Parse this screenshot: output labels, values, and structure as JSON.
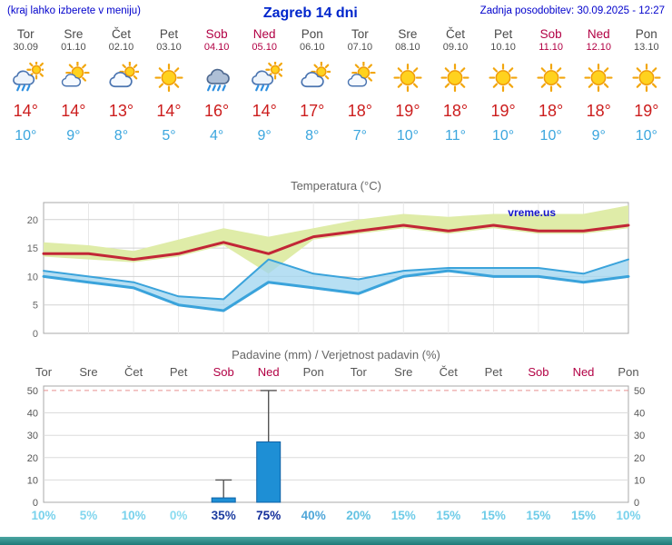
{
  "header": {
    "left_note": "(kraj lahko izberete v meniju)",
    "title": "Zagreb 14 dni",
    "updated": "Zadnja posodobitev: 30.09.2025 - 12:27"
  },
  "colors": {
    "header_blue": "#0000cc",
    "weekday_text": "#494949",
    "weekend_text": "#b20044",
    "temp_high": "#cc1d1d",
    "temp_low": "#3ba6de",
    "footer_teal": "#2d8a88"
  },
  "forecast": {
    "days": [
      {
        "name": "Tor",
        "date": "30.09",
        "weekend": false,
        "icon": "showers",
        "high": "14°",
        "low": "10°"
      },
      {
        "name": "Sre",
        "date": "01.10",
        "weekend": false,
        "icon": "partly-cloudy",
        "high": "14°",
        "low": "9°"
      },
      {
        "name": "Čet",
        "date": "02.10",
        "weekend": false,
        "icon": "mostly-cloudy",
        "high": "13°",
        "low": "8°"
      },
      {
        "name": "Pet",
        "date": "03.10",
        "weekend": false,
        "icon": "sunny",
        "high": "14°",
        "low": "5°"
      },
      {
        "name": "Sob",
        "date": "04.10",
        "weekend": true,
        "icon": "rain",
        "high": "16°",
        "low": "4°"
      },
      {
        "name": "Ned",
        "date": "05.10",
        "weekend": true,
        "icon": "showers",
        "high": "14°",
        "low": "9°"
      },
      {
        "name": "Pon",
        "date": "06.10",
        "weekend": false,
        "icon": "mostly-cloudy",
        "high": "17°",
        "low": "8°"
      },
      {
        "name": "Tor",
        "date": "07.10",
        "weekend": false,
        "icon": "partly-cloudy",
        "high": "18°",
        "low": "7°"
      },
      {
        "name": "Sre",
        "date": "08.10",
        "weekend": false,
        "icon": "sunny",
        "high": "19°",
        "low": "10°"
      },
      {
        "name": "Čet",
        "date": "09.10",
        "weekend": false,
        "icon": "sunny",
        "high": "18°",
        "low": "11°"
      },
      {
        "name": "Pet",
        "date": "10.10",
        "weekend": false,
        "icon": "sunny",
        "high": "19°",
        "low": "10°"
      },
      {
        "name": "Sob",
        "date": "11.10",
        "weekend": true,
        "icon": "sunny",
        "high": "18°",
        "low": "10°"
      },
      {
        "name": "Ned",
        "date": "12.10",
        "weekend": true,
        "icon": "sunny",
        "high": "18°",
        "low": "9°"
      },
      {
        "name": "Pon",
        "date": "13.10",
        "weekend": false,
        "icon": "sunny",
        "high": "19°",
        "low": "10°"
      }
    ]
  },
  "chart_data": [
    {
      "type": "line",
      "title": "Temperatura (°C)",
      "watermark": "vreme.us",
      "watermark_color": "#1515cc",
      "x_dates": [
        "30.09",
        "01.10",
        "02.10",
        "03.10",
        "04.10",
        "05.10",
        "06.10",
        "07.10",
        "08.10",
        "09.10",
        "10.10",
        "11.10",
        "12.10",
        "13.10"
      ],
      "ylim": [
        0,
        23
      ],
      "yticks": [
        0,
        5,
        10,
        15,
        20
      ],
      "grid": true,
      "bands": [
        {
          "name": "max-temp-range",
          "color": "#dfeca8",
          "opacity": 1,
          "upper": [
            16,
            15.5,
            14.5,
            16.5,
            18.5,
            17,
            18.5,
            20,
            21,
            20.5,
            21,
            21,
            21,
            22.5
          ],
          "lower": [
            13.5,
            13,
            12.5,
            13.5,
            15.5,
            10.5,
            16.5,
            17.5,
            18.5,
            17.5,
            18.5,
            17.5,
            17.5,
            18.5
          ]
        },
        {
          "name": "min-temp-range",
          "color": "#9fd4ef",
          "opacity": 0.75,
          "upper": [
            11,
            10,
            9,
            6.5,
            6,
            13,
            10.5,
            9.5,
            11,
            11.5,
            11.5,
            11.5,
            10.5,
            13
          ],
          "lower": [
            10,
            9,
            8,
            5,
            4,
            9,
            8,
            7,
            10,
            11,
            10,
            10,
            9,
            10
          ]
        }
      ],
      "series": [
        {
          "name": "min-temp-upper-edge",
          "color": "#3aa3db",
          "width": 2,
          "values": [
            11,
            10,
            9,
            6.5,
            6,
            13,
            10.5,
            9.5,
            11,
            11.5,
            11.5,
            11.5,
            10.5,
            13
          ]
        },
        {
          "name": "min-temp",
          "color": "#3aa3db",
          "width": 3,
          "values": [
            10,
            9,
            8,
            5,
            4,
            9,
            8,
            7,
            10,
            11,
            10,
            10,
            9,
            10
          ]
        },
        {
          "name": "max-temp",
          "color": "#c22636",
          "width": 3,
          "values": [
            14,
            14,
            13,
            14,
            16,
            14,
            17,
            18,
            19,
            18,
            19,
            18,
            18,
            19
          ]
        }
      ]
    },
    {
      "type": "bar",
      "title": "Padavine (mm) / Verjetnost padavin (%)",
      "categories": [
        "Tor",
        "Sre",
        "Čet",
        "Pet",
        "Sob",
        "Ned",
        "Pon",
        "Tor",
        "Sre",
        "Čet",
        "Pet",
        "Sob",
        "Ned",
        "Pon"
      ],
      "weekend_flags": [
        false,
        false,
        false,
        false,
        true,
        true,
        false,
        false,
        false,
        false,
        false,
        true,
        true,
        false
      ],
      "values_mm": [
        0,
        0,
        0,
        0,
        2,
        27,
        0,
        0,
        0,
        0,
        0,
        0,
        0,
        0
      ],
      "whisker_max_mm": [
        0,
        0,
        0,
        0,
        10,
        50,
        0,
        0,
        0,
        0,
        0,
        0,
        0,
        0
      ],
      "probabilities": [
        "10%",
        "5%",
        "10%",
        "0%",
        "35%",
        "75%",
        "40%",
        "20%",
        "15%",
        "15%",
        "15%",
        "15%",
        "15%",
        "10%"
      ],
      "prob_colors": [
        "#79d2ec",
        "#82d6ee",
        "#79d2ec",
        "#8adcf0",
        "#1d3da0",
        "#142f9b",
        "#4fa6d8",
        "#63c2e2",
        "#6fcce8",
        "#6fcce8",
        "#6fcce8",
        "#6fcce8",
        "#6fcce8",
        "#79d2ec"
      ],
      "ylim": [
        0,
        52
      ],
      "yticks": [
        0,
        10,
        20,
        30,
        40,
        50
      ],
      "bar_color": "#1e8fd5",
      "bar_edge": "#0f62a6",
      "topline_color": "#e89090",
      "axis_label_color": "#555555",
      "weekend_label_color": "#b20044"
    }
  ]
}
